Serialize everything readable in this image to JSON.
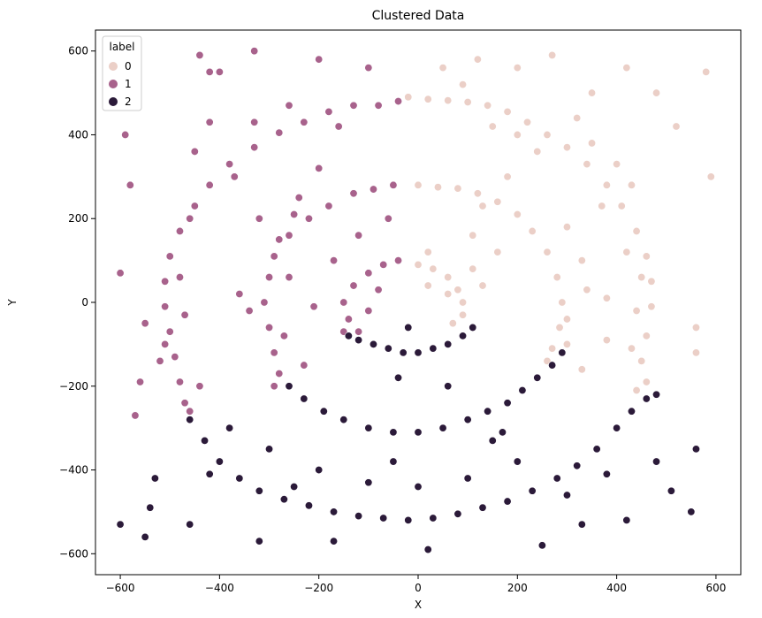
{
  "chart_data": {
    "type": "scatter",
    "title": "Clustered Data",
    "xlabel": "X",
    "ylabel": "Y",
    "xlim": [
      -650,
      650
    ],
    "ylim": [
      -650,
      650
    ],
    "xticks": [
      -600,
      -400,
      -200,
      0,
      200,
      400,
      600
    ],
    "yticks": [
      -600,
      -400,
      -200,
      0,
      200,
      400,
      600
    ],
    "grid": false,
    "legend": {
      "title": "label",
      "placement": "top-left",
      "entries": [
        {
          "label": "0",
          "color": "#ebcfc7"
        },
        {
          "label": "1",
          "color": "#a8628c"
        },
        {
          "label": "2",
          "color": "#2b1a39"
        }
      ]
    },
    "series": [
      {
        "name": "0",
        "color": "#ebcfc7",
        "points": [
          [
            -20,
            490
          ],
          [
            20,
            485
          ],
          [
            60,
            482
          ],
          [
            100,
            478
          ],
          [
            140,
            470
          ],
          [
            180,
            455
          ],
          [
            220,
            430
          ],
          [
            260,
            400
          ],
          [
            300,
            370
          ],
          [
            340,
            330
          ],
          [
            380,
            280
          ],
          [
            410,
            230
          ],
          [
            440,
            170
          ],
          [
            460,
            110
          ],
          [
            470,
            50
          ],
          [
            470,
            -10
          ],
          [
            460,
            -80
          ],
          [
            450,
            -140
          ],
          [
            460,
            -190
          ],
          [
            440,
            -210
          ],
          [
            120,
            580
          ],
          [
            200,
            560
          ],
          [
            270,
            590
          ],
          [
            480,
            500
          ],
          [
            520,
            420
          ],
          [
            580,
            550
          ],
          [
            590,
            300
          ],
          [
            560,
            -60
          ],
          [
            560,
            -120
          ],
          [
            0,
            280
          ],
          [
            40,
            275
          ],
          [
            80,
            272
          ],
          [
            120,
            260
          ],
          [
            160,
            240
          ],
          [
            200,
            210
          ],
          [
            230,
            170
          ],
          [
            260,
            120
          ],
          [
            280,
            60
          ],
          [
            290,
            0
          ],
          [
            285,
            -60
          ],
          [
            270,
            -110
          ],
          [
            260,
            -140
          ],
          [
            300,
            -100
          ],
          [
            330,
            -160
          ],
          [
            0,
            90
          ],
          [
            30,
            80
          ],
          [
            60,
            60
          ],
          [
            80,
            30
          ],
          [
            90,
            0
          ],
          [
            90,
            -30
          ],
          [
            70,
            -50
          ],
          [
            20,
            120
          ],
          [
            150,
            420
          ],
          [
            350,
            500
          ],
          [
            420,
            560
          ],
          [
            160,
            120
          ],
          [
            110,
            160
          ],
          [
            380,
            -90
          ],
          [
            320,
            440
          ],
          [
            350,
            380
          ],
          [
            400,
            330
          ],
          [
            430,
            280
          ],
          [
            370,
            230
          ],
          [
            420,
            120
          ],
          [
            450,
            60
          ],
          [
            440,
            -20
          ],
          [
            430,
            -110
          ],
          [
            50,
            560
          ],
          [
            90,
            520
          ],
          [
            200,
            400
          ],
          [
            240,
            360
          ],
          [
            180,
            300
          ],
          [
            130,
            230
          ],
          [
            300,
            180
          ],
          [
            330,
            100
          ],
          [
            340,
            30
          ],
          [
            380,
            10
          ],
          [
            300,
            -40
          ],
          [
            20,
            40
          ],
          [
            60,
            20
          ],
          [
            110,
            80
          ],
          [
            130,
            40
          ]
        ]
      },
      {
        "name": "1",
        "color": "#a8628c",
        "points": [
          [
            -40,
            480
          ],
          [
            -80,
            470
          ],
          [
            -130,
            470
          ],
          [
            -180,
            455
          ],
          [
            -230,
            430
          ],
          [
            -280,
            405
          ],
          [
            -330,
            370
          ],
          [
            -380,
            330
          ],
          [
            -420,
            280
          ],
          [
            -450,
            230
          ],
          [
            -480,
            170
          ],
          [
            -500,
            110
          ],
          [
            -510,
            50
          ],
          [
            -510,
            -10
          ],
          [
            -500,
            -70
          ],
          [
            -490,
            -130
          ],
          [
            -480,
            -190
          ],
          [
            -470,
            -240
          ],
          [
            -460,
            -260
          ],
          [
            -590,
            400
          ],
          [
            -600,
            70
          ],
          [
            -580,
            280
          ],
          [
            -550,
            -50
          ],
          [
            -560,
            -190
          ],
          [
            -570,
            -270
          ],
          [
            -510,
            -100
          ],
          [
            -440,
            590
          ],
          [
            -420,
            550
          ],
          [
            -400,
            550
          ],
          [
            -330,
            600
          ],
          [
            -200,
            580
          ],
          [
            -100,
            560
          ],
          [
            -50,
            280
          ],
          [
            -90,
            270
          ],
          [
            -130,
            260
          ],
          [
            -180,
            230
          ],
          [
            -220,
            200
          ],
          [
            -260,
            160
          ],
          [
            -290,
            110
          ],
          [
            -300,
            60
          ],
          [
            -310,
            0
          ],
          [
            -300,
            -60
          ],
          [
            -290,
            -120
          ],
          [
            -280,
            -170
          ],
          [
            -290,
            -200
          ],
          [
            -360,
            20
          ],
          [
            -340,
            -20
          ],
          [
            -210,
            -10
          ],
          [
            -40,
            100
          ],
          [
            -70,
            90
          ],
          [
            -100,
            70
          ],
          [
            -130,
            40
          ],
          [
            -150,
            0
          ],
          [
            -140,
            -40
          ],
          [
            -120,
            -70
          ],
          [
            -150,
            -70
          ],
          [
            -250,
            210
          ],
          [
            -280,
            150
          ],
          [
            -330,
            430
          ],
          [
            -260,
            470
          ],
          [
            -200,
            320
          ],
          [
            -60,
            200
          ],
          [
            -120,
            160
          ],
          [
            -420,
            430
          ],
          [
            -450,
            360
          ],
          [
            -460,
            200
          ],
          [
            -480,
            60
          ],
          [
            -470,
            -30
          ],
          [
            -520,
            -140
          ],
          [
            -440,
            -200
          ],
          [
            -370,
            300
          ],
          [
            -160,
            420
          ],
          [
            -240,
            250
          ],
          [
            -320,
            200
          ],
          [
            -260,
            60
          ],
          [
            -270,
            -80
          ],
          [
            -230,
            -150
          ],
          [
            -170,
            100
          ],
          [
            -100,
            -20
          ],
          [
            -80,
            30
          ]
        ]
      },
      {
        "name": "2",
        "color": "#2b1a39",
        "points": [
          [
            -460,
            -280
          ],
          [
            -430,
            -330
          ],
          [
            -400,
            -380
          ],
          [
            -360,
            -420
          ],
          [
            -320,
            -450
          ],
          [
            -270,
            -470
          ],
          [
            -220,
            -485
          ],
          [
            -170,
            -500
          ],
          [
            -120,
            -510
          ],
          [
            -70,
            -515
          ],
          [
            -20,
            -520
          ],
          [
            30,
            -515
          ],
          [
            80,
            -505
          ],
          [
            130,
            -490
          ],
          [
            180,
            -475
          ],
          [
            230,
            -450
          ],
          [
            280,
            -420
          ],
          [
            320,
            -390
          ],
          [
            360,
            -350
          ],
          [
            400,
            -300
          ],
          [
            430,
            -260
          ],
          [
            460,
            -230
          ],
          [
            480,
            -220
          ],
          [
            -600,
            -530
          ],
          [
            -550,
            -560
          ],
          [
            -540,
            -490
          ],
          [
            -530,
            -420
          ],
          [
            -460,
            -530
          ],
          [
            -320,
            -570
          ],
          [
            -170,
            -570
          ],
          [
            20,
            -590
          ],
          [
            250,
            -580
          ],
          [
            330,
            -530
          ],
          [
            420,
            -520
          ],
          [
            510,
            -450
          ],
          [
            550,
            -500
          ],
          [
            560,
            -350
          ],
          [
            480,
            -380
          ],
          [
            -260,
            -200
          ],
          [
            -230,
            -230
          ],
          [
            -190,
            -260
          ],
          [
            -150,
            -280
          ],
          [
            -100,
            -300
          ],
          [
            -50,
            -310
          ],
          [
            0,
            -310
          ],
          [
            50,
            -300
          ],
          [
            100,
            -280
          ],
          [
            140,
            -260
          ],
          [
            180,
            -240
          ],
          [
            210,
            -210
          ],
          [
            240,
            -180
          ],
          [
            270,
            -150
          ],
          [
            290,
            -120
          ],
          [
            -120,
            -90
          ],
          [
            -90,
            -100
          ],
          [
            -60,
            -110
          ],
          [
            -30,
            -120
          ],
          [
            0,
            -120
          ],
          [
            30,
            -110
          ],
          [
            60,
            -100
          ],
          [
            90,
            -80
          ],
          [
            110,
            -60
          ],
          [
            -140,
            -80
          ],
          [
            -20,
            -60
          ],
          [
            -380,
            -300
          ],
          [
            -300,
            -350
          ],
          [
            -200,
            -400
          ],
          [
            -100,
            -430
          ],
          [
            0,
            -440
          ],
          [
            100,
            -420
          ],
          [
            200,
            -380
          ],
          [
            -50,
            -380
          ],
          [
            150,
            -330
          ],
          [
            -250,
            -440
          ],
          [
            300,
            -460
          ],
          [
            380,
            -410
          ],
          [
            -40,
            -180
          ],
          [
            60,
            -200
          ],
          [
            170,
            -310
          ],
          [
            -420,
            -410
          ]
        ]
      }
    ]
  }
}
